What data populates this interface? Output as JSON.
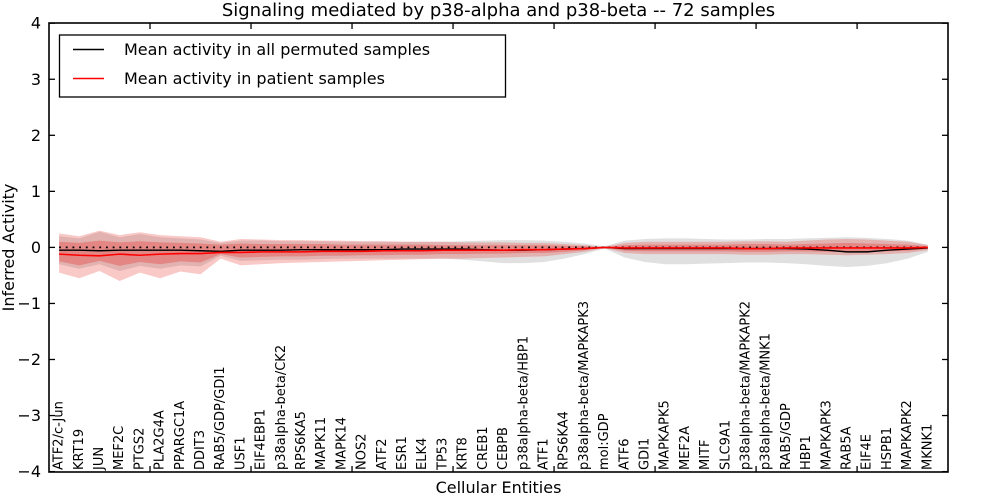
{
  "chart_data": {
    "type": "line",
    "title": "Signaling mediated by p38-alpha and p38-beta -- 72 samples",
    "xlabel": "Cellular Entities",
    "ylabel": "Inferred Activity",
    "ylim": [
      -4,
      4
    ],
    "yticks": [
      4,
      3,
      2,
      1,
      0,
      -1,
      -2,
      -3,
      -4
    ],
    "xticks": [
      5,
      10,
      15,
      20,
      25,
      30,
      35,
      40
    ],
    "grid": false,
    "legend_position": "upper left",
    "legend": [
      {
        "label": "Mean activity in all permuted samples",
        "color": "#000000"
      },
      {
        "label": "Mean activity in patient samples",
        "color": "#ff0000"
      }
    ],
    "categories": [
      "ATF2/c-Jun",
      "KRT19",
      "JUN",
      "MEF2C",
      "PTGS2",
      "PLA2G4A",
      "PPARGC1A",
      "DDIT3",
      "RAB5/GDP/GDI1",
      "USF1",
      "EIF4EBP1",
      "p38alpha-beta/CK2",
      "RPS6KA5",
      "MAPK11",
      "MAPK14",
      "NOS2",
      "ATF2",
      "ESR1",
      "ELK4",
      "TP53",
      "KRT8",
      "CREB1",
      "CEBPB",
      "p38alpha-beta/HBP1",
      "ATF1",
      "RPS6KA4",
      "p38alpha-beta/MAPKAPK3",
      "mol:GDP",
      "ATF6",
      "GDI1",
      "MAPKAPK5",
      "MEF2A",
      "MITF",
      "SLC9A1",
      "p38alpha-beta/MAPKAPK2",
      "p38alpha-beta/MNK1",
      "RAB5/GDP",
      "HBP1",
      "MAPKAPK3",
      "RAB5A",
      "EIF4E",
      "HSPB1",
      "MAPKAPK2",
      "MKNK1"
    ],
    "series": [
      {
        "name": "Mean activity in all permuted samples",
        "color": "#000000",
        "values": [
          -0.05,
          -0.05,
          -0.06,
          -0.05,
          -0.05,
          -0.05,
          -0.05,
          -0.06,
          -0.07,
          -0.05,
          -0.05,
          -0.05,
          -0.04,
          -0.04,
          -0.04,
          -0.04,
          -0.04,
          -0.03,
          -0.03,
          -0.03,
          -0.03,
          -0.04,
          -0.05,
          -0.05,
          -0.04,
          -0.03,
          -0.02,
          0,
          -0.02,
          -0.02,
          -0.02,
          -0.02,
          -0.02,
          -0.02,
          -0.02,
          -0.02,
          -0.02,
          -0.03,
          -0.05,
          -0.08,
          -0.08,
          -0.05,
          -0.03,
          -0.01
        ]
      },
      {
        "name": "Mean activity in patient samples",
        "color": "#ff0000",
        "values": [
          -0.12,
          -0.14,
          -0.15,
          -0.12,
          -0.14,
          -0.12,
          -0.11,
          -0.11,
          -0.09,
          -0.09,
          -0.08,
          -0.08,
          -0.08,
          -0.07,
          -0.07,
          -0.07,
          -0.06,
          -0.06,
          -0.06,
          -0.05,
          -0.05,
          -0.05,
          -0.05,
          -0.04,
          -0.04,
          -0.03,
          -0.02,
          0,
          -0.01,
          -0.01,
          -0.01,
          -0.01,
          -0.01,
          -0.01,
          -0.02,
          -0.02,
          -0.01,
          -0.01,
          -0.01,
          -0.01,
          -0.01,
          -0.01,
          -0.01,
          0
        ]
      }
    ],
    "reference_line": {
      "value": 0,
      "style": "dotted",
      "color": "#000000"
    },
    "bands": [
      {
        "name": "permuted-range",
        "color": "rgba(130,130,130,0.25)",
        "hi": [
          0.2,
          0.16,
          0.28,
          0.18,
          0.24,
          0.18,
          0.16,
          0.14,
          0.08,
          0.12,
          0.12,
          0.11,
          0.11,
          0.11,
          0.1,
          0.1,
          0.1,
          0.1,
          0.1,
          0.1,
          0.11,
          0.12,
          0.13,
          0.13,
          0.12,
          0.1,
          0.07,
          0.02,
          0.12,
          0.15,
          0.16,
          0.16,
          0.15,
          0.14,
          0.14,
          0.15,
          0.15,
          0.16,
          0.17,
          0.18,
          0.17,
          0.15,
          0.12,
          0.05
        ],
        "lo": [
          -0.3,
          -0.38,
          -0.3,
          -0.42,
          -0.33,
          -0.38,
          -0.32,
          -0.34,
          -0.15,
          -0.24,
          -0.23,
          -0.22,
          -0.22,
          -0.21,
          -0.2,
          -0.2,
          -0.2,
          -0.2,
          -0.2,
          -0.2,
          -0.22,
          -0.25,
          -0.28,
          -0.28,
          -0.26,
          -0.2,
          -0.12,
          -0.02,
          -0.18,
          -0.26,
          -0.3,
          -0.3,
          -0.29,
          -0.28,
          -0.27,
          -0.27,
          -0.28,
          -0.3,
          -0.33,
          -0.35,
          -0.33,
          -0.28,
          -0.2,
          -0.08
        ]
      },
      {
        "name": "patient-range-outer",
        "color": "rgba(235,60,55,0.28)",
        "hi": [
          0.25,
          0.2,
          0.3,
          0.22,
          0.27,
          0.22,
          0.2,
          0.18,
          0.1,
          0.15,
          0.14,
          0.13,
          0.13,
          0.12,
          0.12,
          0.11,
          0.11,
          0.1,
          0.1,
          0.1,
          0.09,
          0.09,
          0.09,
          0.08,
          0.08,
          0.06,
          0.04,
          0.01,
          0.08,
          0.1,
          0.1,
          0.1,
          0.1,
          0.1,
          0.11,
          0.11,
          0.1,
          0.12,
          0.14,
          0.15,
          0.14,
          0.12,
          0.1,
          0.04
        ],
        "lo": [
          -0.45,
          -0.55,
          -0.42,
          -0.6,
          -0.45,
          -0.55,
          -0.43,
          -0.48,
          -0.2,
          -0.32,
          -0.3,
          -0.28,
          -0.27,
          -0.26,
          -0.25,
          -0.24,
          -0.23,
          -0.22,
          -0.21,
          -0.2,
          -0.2,
          -0.19,
          -0.18,
          -0.17,
          -0.16,
          -0.12,
          -0.08,
          -0.01,
          -0.1,
          -0.12,
          -0.12,
          -0.12,
          -0.12,
          -0.12,
          -0.13,
          -0.13,
          -0.12,
          -0.12,
          -0.13,
          -0.14,
          -0.13,
          -0.12,
          -0.1,
          -0.05
        ]
      },
      {
        "name": "patient-range-inner",
        "color": "rgba(230,45,40,0.32)",
        "hi": [
          0.1,
          0.08,
          0.12,
          0.09,
          0.11,
          0.09,
          0.08,
          0.07,
          0.05,
          0.07,
          0.06,
          0.06,
          0.06,
          0.06,
          0.05,
          0.05,
          0.05,
          0.05,
          0.05,
          0.04,
          0.04,
          0.04,
          0.04,
          0.04,
          0.04,
          0.03,
          0.02,
          0,
          0.04,
          0.05,
          0.05,
          0.05,
          0.05,
          0.05,
          0.06,
          0.06,
          0.05,
          0.06,
          0.07,
          0.08,
          0.07,
          0.06,
          0.05,
          0.02
        ],
        "lo": [
          -0.25,
          -0.32,
          -0.24,
          -0.33,
          -0.26,
          -0.3,
          -0.25,
          -0.27,
          -0.12,
          -0.18,
          -0.17,
          -0.16,
          -0.16,
          -0.15,
          -0.15,
          -0.14,
          -0.14,
          -0.13,
          -0.13,
          -0.12,
          -0.12,
          -0.11,
          -0.11,
          -0.1,
          -0.1,
          -0.08,
          -0.05,
          0,
          -0.06,
          -0.07,
          -0.07,
          -0.07,
          -0.07,
          -0.07,
          -0.08,
          -0.08,
          -0.07,
          -0.07,
          -0.08,
          -0.08,
          -0.08,
          -0.07,
          -0.06,
          -0.03
        ]
      }
    ],
    "colors": {
      "patient_line": "#ff0000",
      "permuted_line": "#000000",
      "axis": "#000000",
      "background": "#ffffff"
    }
  }
}
